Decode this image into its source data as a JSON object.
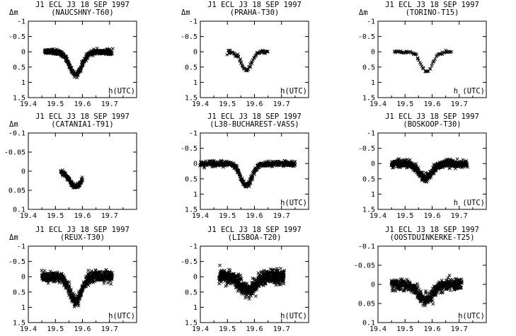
{
  "chart_data": [
    {
      "type": "scatter",
      "title": "J1 ECL J3 18 SEP 1997",
      "subtitle": "(NAUCSHNY-T60)",
      "ylabel": "Δm",
      "xlabel": "h(UTC)",
      "xlim": [
        19.4,
        19.8
      ],
      "ylim": [
        -1,
        1.5
      ],
      "yinvert": true,
      "xticks": [
        "19.4",
        "19.5",
        "19.6",
        "19.7"
      ],
      "yticks": [
        "-1",
        "-0.5",
        "0",
        "0.5",
        "1",
        "1.5"
      ],
      "curve": {
        "x_start": 19.46,
        "x_end": 19.71,
        "depth": 0.75,
        "center": 19.575,
        "width": 0.03,
        "spread": 0.08,
        "n": 420
      }
    },
    {
      "type": "scatter",
      "title": "J1 ECL J3 18 SEP 1997",
      "subtitle": "(PRAHA-T30)",
      "ylabel": "Δm",
      "xlabel": "h(UTC)",
      "xlim": [
        19.4,
        19.8
      ],
      "ylim": [
        -1,
        1.5
      ],
      "yinvert": true,
      "xticks": [
        "19.4",
        "19.5",
        "19.6",
        "19.7"
      ],
      "yticks": [
        "-1",
        "-0.5",
        "0",
        "0.5",
        "1",
        "1.5"
      ],
      "curve": {
        "x_start": 19.5,
        "x_end": 19.65,
        "depth": 0.6,
        "center": 19.57,
        "width": 0.025,
        "spread": 0.08,
        "n": 75
      }
    },
    {
      "type": "scatter",
      "title": "J1 ECL J3 18 SEP 1997",
      "subtitle": "(TORINO-T15)",
      "ylabel": "Δm",
      "xlabel": "h (UTC)",
      "xlim": [
        19.4,
        19.8
      ],
      "ylim": [
        -1,
        1.5
      ],
      "yinvert": true,
      "xticks": [
        "19.4",
        "19.5",
        "19.6",
        "19.7"
      ],
      "yticks": [
        "-1",
        "-0.5",
        "0",
        "0.5",
        "1",
        "1.5"
      ],
      "curve": {
        "x_start": 19.46,
        "x_end": 19.67,
        "depth": 0.65,
        "center": 19.58,
        "width": 0.028,
        "spread": 0.04,
        "n": 70
      }
    },
    {
      "type": "scatter",
      "title": "J1 ECL J3 18 SEP 1997",
      "subtitle": "(CATANIA1-T91)",
      "ylabel": "Δm",
      "xlabel": "",
      "xlim": [
        19.4,
        19.8
      ],
      "ylim": [
        -0.1,
        0.1
      ],
      "yinvert": true,
      "xticks": [
        "19.4",
        "19.5",
        "19.6",
        "19.7"
      ],
      "yticks": [
        "-0.1",
        "-0.05",
        "0",
        "0.05",
        "0.1"
      ],
      "curve": {
        "x_start": 19.52,
        "x_end": 19.6,
        "depth": 0.04,
        "center": 19.575,
        "width": 0.03,
        "spread": 0.006,
        "n": 130
      }
    },
    {
      "type": "scatter",
      "title": "J1 ECL J3 18 SEP 1997",
      "subtitle": "(L38-BUCHAREST-VASS)",
      "ylabel": "",
      "xlabel": "h(UTC)",
      "xlim": [
        19.4,
        19.8
      ],
      "ylim": [
        -1,
        1.5
      ],
      "yinvert": true,
      "xticks": [
        "19.4",
        "19.5",
        "19.6",
        "19.7"
      ],
      "yticks": [
        "-1",
        "-0.5",
        "0",
        "0.5",
        "1",
        "1.5"
      ],
      "curve": {
        "x_start": 19.4,
        "x_end": 19.75,
        "depth": 0.72,
        "center": 19.57,
        "width": 0.028,
        "spread": 0.09,
        "n": 480
      }
    },
    {
      "type": "scatter",
      "title": "J1 ECL J3 18 SEP 1997",
      "subtitle": "(BOSKOOP-T30)",
      "ylabel": "",
      "xlabel": "h (UTC)",
      "xlim": [
        19.4,
        19.8
      ],
      "ylim": [
        -1,
        1.5
      ],
      "yinvert": true,
      "xticks": [
        "19.4",
        "19.5",
        "19.6",
        "19.7"
      ],
      "yticks": [
        "-1",
        "-0.5",
        "0",
        "0.5",
        "1",
        "1.5"
      ],
      "curve": {
        "x_start": 19.45,
        "x_end": 19.73,
        "depth": 0.5,
        "center": 19.575,
        "width": 0.03,
        "spread": 0.12,
        "n": 600
      }
    },
    {
      "type": "scatter",
      "title": "J1 ECL J3 18 SEP 1997",
      "subtitle": "(REUX-T30)",
      "ylabel": "Δm",
      "xlabel": "h(UTC)",
      "xlim": [
        19.4,
        19.8
      ],
      "ylim": [
        -1,
        1.5
      ],
      "yinvert": true,
      "xticks": [
        "19.4",
        "19.5",
        "19.6",
        "19.7"
      ],
      "yticks": [
        "-1",
        "-0.5",
        "0",
        "0.5",
        "1",
        "1.5"
      ],
      "curve": {
        "x_start": 19.45,
        "x_end": 19.71,
        "depth": 0.78,
        "center": 19.575,
        "width": 0.028,
        "spread": 0.17,
        "n": 620
      }
    },
    {
      "type": "scatter",
      "title": "J1 ECL J3 18 SEP 1997",
      "subtitle": "(LISBOA-T20)",
      "ylabel": "",
      "xlabel": "h(UTC)",
      "xlim": [
        19.4,
        19.8
      ],
      "ylim": [
        -1,
        1.5
      ],
      "yinvert": true,
      "xticks": [
        "19.4",
        "19.5",
        "19.6",
        "19.7"
      ],
      "yticks": [
        "-1",
        "-0.5",
        "0",
        "0.5",
        "1",
        "1.5"
      ],
      "curve": {
        "x_start": 19.47,
        "x_end": 19.71,
        "depth": 0.45,
        "center": 19.575,
        "width": 0.035,
        "spread": 0.22,
        "n": 750
      }
    },
    {
      "type": "scatter",
      "title": "J1 ECL J3 18 SEP 1997",
      "subtitle": "(OOSTDUINKERKE-T25)",
      "ylabel": "",
      "xlabel": "h(UTC)",
      "xlim": [
        19.4,
        19.8
      ],
      "ylim": [
        -0.1,
        0.1
      ],
      "yinvert": true,
      "xticks": [
        "19.4",
        "19.5",
        "19.6",
        "19.7"
      ],
      "yticks": [
        "-0.1",
        "-0.05",
        "0",
        "0.05",
        "0.1"
      ],
      "curve": {
        "x_start": 19.45,
        "x_end": 19.71,
        "depth": 0.04,
        "center": 19.575,
        "width": 0.035,
        "spread": 0.015,
        "n": 520
      }
    }
  ],
  "colors": {
    "marker": "#000000",
    "axis": "#000000",
    "background": "#ffffff"
  }
}
